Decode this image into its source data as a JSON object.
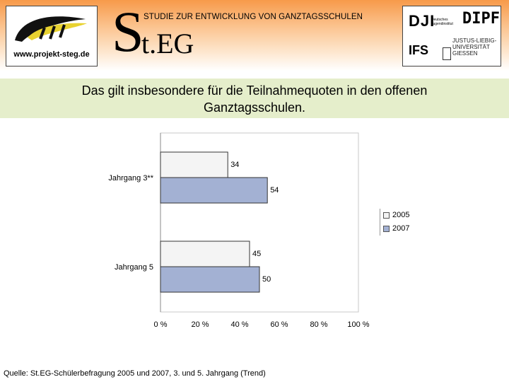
{
  "header": {
    "url": "www.projekt-steg.de",
    "logo_S": "S",
    "logo_rest": "t.EG",
    "subtitle": "STUDIE ZUR ENTWICKLUNG VON GANZTAGSSCHULEN",
    "partners": {
      "dji": "DJI",
      "dji_sub": "Deutsches Jugendinstitut",
      "dipf": "DIPF",
      "ifs": "IFS",
      "uni_line1": "JUSTUS-LIEBIG-",
      "uni_line2": "UNIVERSITÄT",
      "uni_line3": "GIESSEN"
    }
  },
  "headline_line1": "Das gilt insbesondere für die Teilnahmequoten in den offenen",
  "headline_line2": "Ganztagsschulen.",
  "chart_data": {
    "type": "bar",
    "orientation": "horizontal",
    "categories": [
      "Jahrgang 3**",
      "Jahrgang 5"
    ],
    "series": [
      {
        "name": "2005",
        "values": [
          34,
          45
        ],
        "color": "#f0f0f0"
      },
      {
        "name": "2007",
        "values": [
          54,
          50
        ],
        "color": "#a3b1d3"
      }
    ],
    "xlim": [
      0,
      100
    ],
    "x_ticks": [
      "0 %",
      "20 %",
      "40 %",
      "60 %",
      "80 %",
      "100 %"
    ],
    "legend_position": "right",
    "grid": false
  },
  "source": "Quelle: St.EG-Schülerbefragung 2005 und 2007, 3. und 5. Jahrgang (Trend)"
}
